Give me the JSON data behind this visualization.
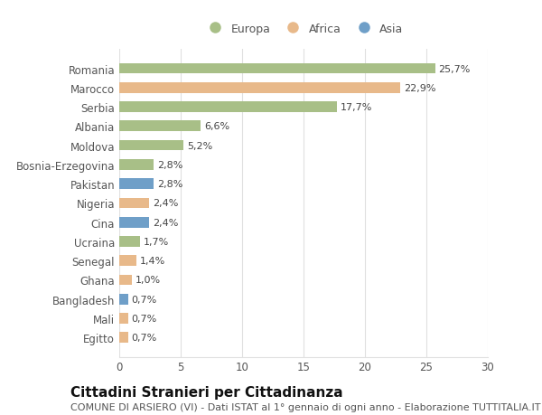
{
  "categories": [
    "Romania",
    "Marocco",
    "Serbia",
    "Albania",
    "Moldova",
    "Bosnia-Erzegovina",
    "Pakistan",
    "Nigeria",
    "Cina",
    "Ucraina",
    "Senegal",
    "Ghana",
    "Bangladesh",
    "Mali",
    "Egitto"
  ],
  "values": [
    25.7,
    22.9,
    17.7,
    6.6,
    5.2,
    2.8,
    2.8,
    2.4,
    2.4,
    1.7,
    1.4,
    1.0,
    0.7,
    0.7,
    0.7
  ],
  "labels": [
    "25,7%",
    "22,9%",
    "17,7%",
    "6,6%",
    "5,2%",
    "2,8%",
    "2,8%",
    "2,4%",
    "2,4%",
    "1,7%",
    "1,4%",
    "1,0%",
    "0,7%",
    "0,7%",
    "0,7%"
  ],
  "continent": [
    "Europa",
    "Africa",
    "Europa",
    "Europa",
    "Europa",
    "Europa",
    "Asia",
    "Africa",
    "Asia",
    "Europa",
    "Africa",
    "Africa",
    "Asia",
    "Africa",
    "Africa"
  ],
  "colors": {
    "Europa": "#a8bf87",
    "Africa": "#e8b98a",
    "Asia": "#6f9fc8"
  },
  "background_color": "#ffffff",
  "plot_bg_color": "#ffffff",
  "title": "Cittadini Stranieri per Cittadinanza",
  "subtitle": "COMUNE DI ARSIERO (VI) - Dati ISTAT al 1° gennaio di ogni anno - Elaborazione TUTTITALIA.IT",
  "xlim": [
    0,
    30
  ],
  "xticks": [
    0,
    5,
    10,
    15,
    20,
    25,
    30
  ],
  "grid_color": "#e0e0e0",
  "bar_height": 0.55,
  "title_fontsize": 11,
  "subtitle_fontsize": 8,
  "label_fontsize": 8,
  "tick_fontsize": 8.5,
  "legend_fontsize": 9
}
